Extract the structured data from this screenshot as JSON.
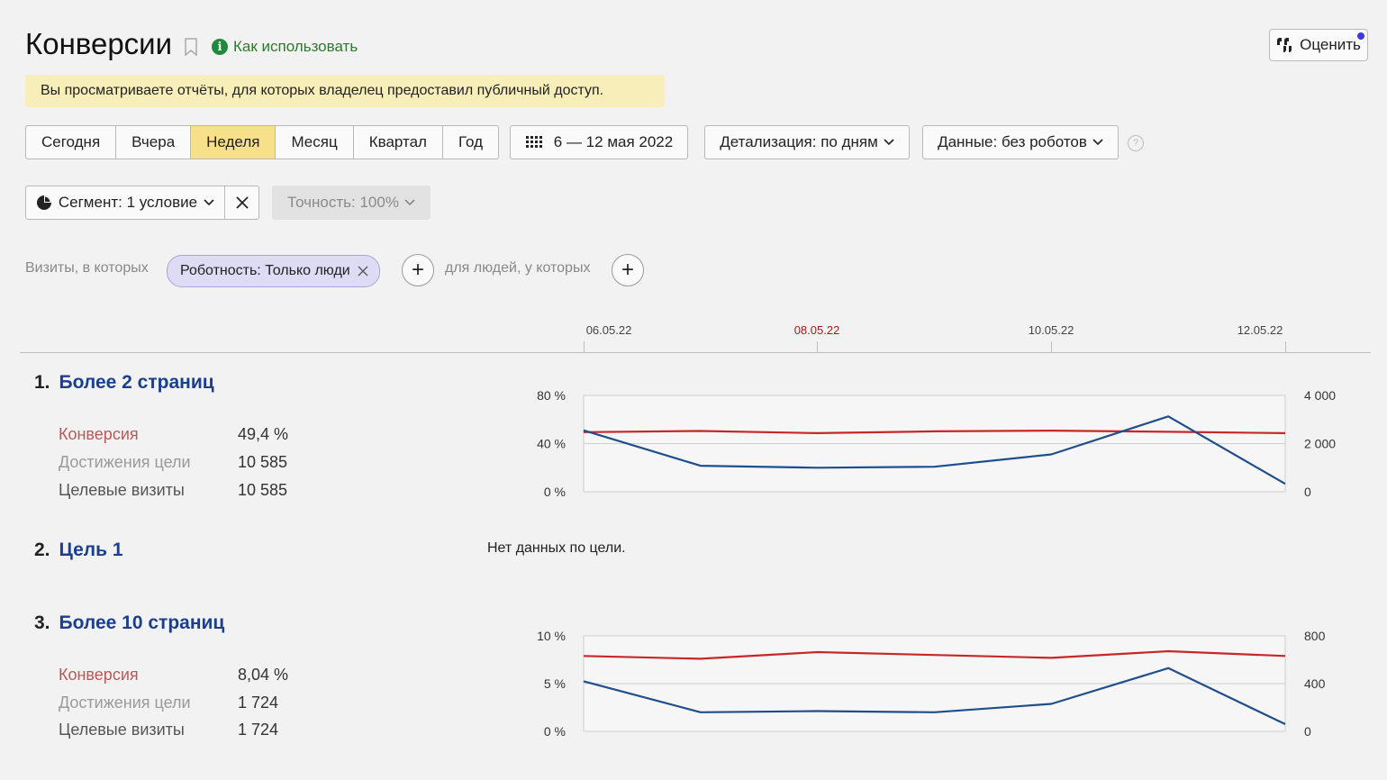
{
  "header": {
    "title": "Конверсии",
    "howto_label": "Как использовать",
    "rate_label": "Оценить",
    "notice": "Вы просматриваете отчёты, для которых владелец предоставил публичный доступ."
  },
  "periods": [
    "Сегодня",
    "Вчера",
    "Неделя",
    "Месяц",
    "Квартал",
    "Год"
  ],
  "active_period": "Неделя",
  "toolbar": {
    "date_range": "6 — 12 мая 2022",
    "detail_label": "Детализация: по дням",
    "data_label": "Данные: без роботов",
    "help": "?"
  },
  "segment": {
    "label": "Сегмент: 1 условие",
    "accuracy_label": "Точность: 100%"
  },
  "filters": {
    "visits_label": "Визиты, в которых",
    "chip_label": "Роботность: Только люди",
    "people_label": "для людей, у которых"
  },
  "timeline": {
    "dates": [
      "06.05.22",
      "08.05.22",
      "10.05.22",
      "12.05.22"
    ],
    "highlight": "08.05.22"
  },
  "metric_labels": {
    "conversion": "Конверсия",
    "reaches": "Достижения цели",
    "visits": "Целевые визиты"
  },
  "goals": [
    {
      "num": "1.",
      "name": "Более 2 страниц",
      "conversion": "49,4 %",
      "reaches": "10 585",
      "visits": "10 585"
    },
    {
      "num": "2.",
      "name": "Цель 1",
      "no_data": "Нет данных по цели."
    },
    {
      "num": "3.",
      "name": "Более 10 страниц",
      "conversion": "8,04 %",
      "reaches": "1 724",
      "visits": "1 724"
    }
  ],
  "colors": {
    "conversion_line": "#c62828",
    "visits_line": "#1f4e8c",
    "active_period": "#f8df8a",
    "chip": "#dedcf5"
  },
  "chart_data": [
    {
      "type": "line",
      "x": [
        "06.05.22",
        "07.05.22",
        "08.05.22",
        "09.05.22",
        "10.05.22",
        "11.05.22",
        "12.05.22"
      ],
      "series": [
        {
          "axis": "left",
          "values": [
            49.5,
            50.5,
            48.7,
            50.2,
            50.8,
            49.8,
            48.7
          ]
        },
        {
          "axis": "right",
          "values": [
            2550,
            1080,
            1000,
            1040,
            1550,
            3130,
            330
          ]
        }
      ],
      "y_left_ticks": [
        "0 %",
        "40 %",
        "80 %"
      ],
      "y_left_range": [
        0,
        80
      ],
      "y_right_ticks": [
        "0",
        "2 000",
        "4 000"
      ],
      "y_right_range": [
        0,
        4000
      ]
    },
    {
      "type": "line",
      "x": [
        "06.05.22",
        "07.05.22",
        "08.05.22",
        "09.05.22",
        "10.05.22",
        "11.05.22",
        "12.05.22"
      ],
      "series": [
        {
          "axis": "left",
          "values": [
            7.9,
            7.6,
            8.3,
            8.0,
            7.7,
            8.4,
            7.9
          ]
        },
        {
          "axis": "right",
          "values": [
            420,
            160,
            170,
            160,
            230,
            530,
            60
          ]
        }
      ],
      "y_left_ticks": [
        "0 %",
        "5 %",
        "10 %"
      ],
      "y_left_range": [
        0,
        10
      ],
      "y_right_ticks": [
        "0",
        "400",
        "800"
      ],
      "y_right_range": [
        0,
        800
      ]
    }
  ]
}
